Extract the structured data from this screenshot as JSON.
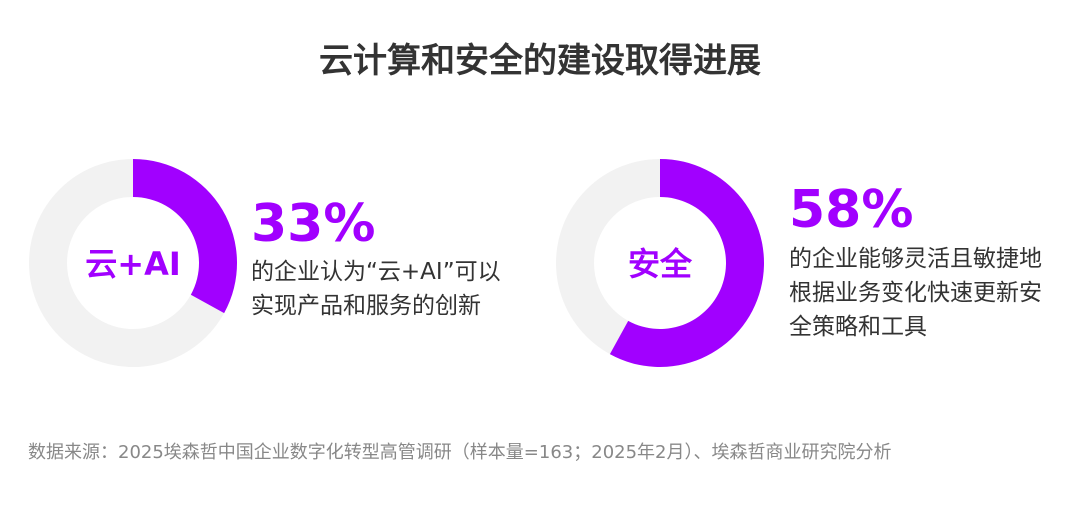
{
  "title": "云计算和安全的建设取得进展",
  "accent_color": "#A100FF",
  "track_color": "#F2F2F2",
  "chart_data": [
    {
      "type": "pie",
      "variant": "donut",
      "center_label": "云+AI",
      "value_label": "33%",
      "values": [
        33,
        67
      ],
      "description": "的企业认为“云+AI”可以实现产品和服务的创新"
    },
    {
      "type": "pie",
      "variant": "donut",
      "center_label": "安全",
      "value_label": "58%",
      "values": [
        58,
        42
      ],
      "description": "的企业能够灵活且敏捷地根据业务变化快速更新安全策略和工具"
    }
  ],
  "source": "数据来源：2025埃森哲中国企业数字化转型高管调研（样本量=163；2025年2月）、埃森哲商业研究院分析"
}
